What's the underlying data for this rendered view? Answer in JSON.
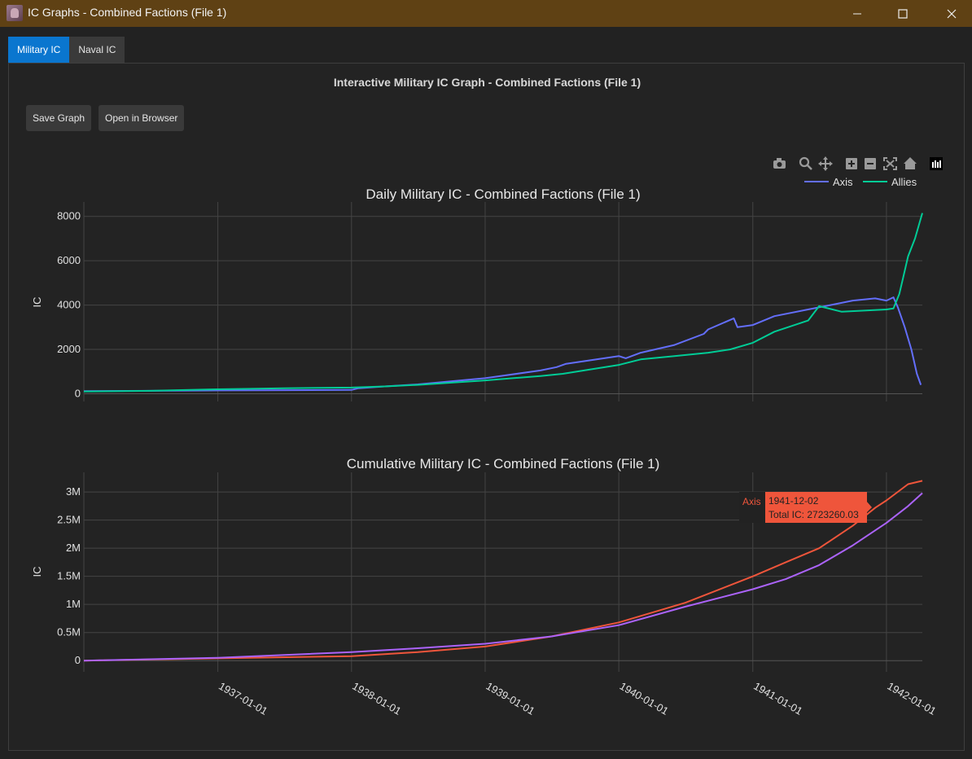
{
  "window": {
    "title": "IC Graphs - Combined Factions (File 1)",
    "controls": [
      "minimize-icon",
      "maximize-icon",
      "close-icon"
    ]
  },
  "tabs": [
    {
      "label": "Military IC",
      "active": true
    },
    {
      "label": "Naval IC",
      "active": false
    }
  ],
  "panel": {
    "title": "Interactive Military IC Graph - Combined Factions (File 1)",
    "save_label": "Save Graph",
    "open_label": "Open in Browser"
  },
  "modebar": [
    "camera-icon",
    "zoom-icon",
    "pan-icon",
    "zoom-in-icon",
    "zoom-out-icon",
    "autoscale-icon",
    "home-icon",
    "plotly-logo-icon"
  ],
  "colors": {
    "axis": "#636efa",
    "allies": "#00cc96",
    "cum_axis": "#ef553b",
    "cum_allies": "#ab63fa"
  },
  "legend": {
    "axis": "Axis",
    "allies": "Allies"
  },
  "tooltip": {
    "name": "Axis",
    "date": "1941-12-02",
    "text": "Total IC: 2723260.03"
  },
  "chart_data": [
    {
      "type": "line",
      "title": "Daily Military IC - Combined Factions (File 1)",
      "ylabel": "IC",
      "ylim": [
        -350,
        8650
      ],
      "yticks": [
        0,
        2000,
        4000,
        6000,
        8000
      ],
      "ytick_labels": [
        "0",
        "2000",
        "4000",
        "6000",
        "8000"
      ],
      "xlim": [
        "1936-01-01",
        "1942-04-09"
      ],
      "grid": true,
      "legend_position": "top-right",
      "series": [
        {
          "name": "Axis",
          "x": [
            "1936-01-01",
            "1936-07-01",
            "1937-01-01",
            "1937-07-01",
            "1938-01-01",
            "1938-01-20",
            "1938-04-01",
            "1938-07-01",
            "1939-01-01",
            "1939-06-01",
            "1939-07-15",
            "1939-08-10",
            "1940-01-01",
            "1940-01-20",
            "1940-03-01",
            "1940-06-01",
            "1940-08-20",
            "1940-09-01",
            "1940-11-10",
            "1940-11-20",
            "1941-01-01",
            "1941-03-01",
            "1941-06-01",
            "1941-08-01",
            "1941-10-01",
            "1941-12-01",
            "1942-01-01",
            "1942-01-20",
            "1942-02-01",
            "1942-02-20",
            "1942-03-10",
            "1942-03-25",
            "1942-04-05"
          ],
          "y": [
            120,
            130,
            150,
            160,
            170,
            250,
            330,
            420,
            700,
            1050,
            1200,
            1350,
            1700,
            1600,
            1850,
            2200,
            2700,
            2900,
            3400,
            3000,
            3100,
            3500,
            3800,
            4000,
            4200,
            4300,
            4200,
            4350,
            3900,
            3000,
            2000,
            900,
            400
          ]
        },
        {
          "name": "Allies",
          "x": [
            "1936-01-01",
            "1936-07-01",
            "1937-01-01",
            "1937-07-01",
            "1938-01-01",
            "1938-04-01",
            "1938-07-01",
            "1939-01-01",
            "1939-06-01",
            "1939-08-01",
            "1940-01-01",
            "1940-03-01",
            "1940-06-01",
            "1940-09-01",
            "1940-11-01",
            "1941-01-01",
            "1941-03-01",
            "1941-06-01",
            "1941-07-01",
            "1941-09-01",
            "1942-01-01",
            "1942-01-20",
            "1942-02-05",
            "1942-02-15",
            "1942-03-01",
            "1942-03-20",
            "1942-04-09"
          ],
          "y": [
            100,
            130,
            200,
            250,
            280,
            330,
            400,
            600,
            800,
            900,
            1300,
            1550,
            1700,
            1850,
            2000,
            2300,
            2800,
            3300,
            3950,
            3700,
            3800,
            3850,
            4500,
            5200,
            6200,
            7000,
            8150
          ]
        }
      ]
    },
    {
      "type": "line",
      "title": "Cumulative Military IC - Combined Factions (File 1)",
      "ylabel": "IC",
      "ylim": [
        -200000,
        3350000
      ],
      "yticks": [
        0,
        500000,
        1000000,
        1500000,
        2000000,
        2500000,
        3000000
      ],
      "ytick_labels": [
        "0",
        "0.5M",
        "1M",
        "1.5M",
        "2M",
        "2.5M",
        "3M"
      ],
      "xlim": [
        "1936-01-01",
        "1942-04-09"
      ],
      "xticks": [
        "1937-01-01",
        "1938-01-01",
        "1939-01-01",
        "1940-01-01",
        "1941-01-01",
        "1942-01-01"
      ],
      "grid": true,
      "series": [
        {
          "name": "Axis",
          "x": [
            "1936-01-01",
            "1937-01-01",
            "1938-01-01",
            "1938-07-01",
            "1939-01-01",
            "1939-07-01",
            "1940-01-01",
            "1940-07-01",
            "1941-01-01",
            "1941-04-01",
            "1941-07-01",
            "1941-10-01",
            "1941-12-02",
            "1942-01-01",
            "1942-03-01",
            "1942-04-09"
          ],
          "y": [
            0,
            40000,
            80000,
            150000,
            250000,
            430000,
            680000,
            1030000,
            1500000,
            1750000,
            2000000,
            2400000,
            2723260,
            2850000,
            3140000,
            3200000
          ]
        },
        {
          "name": "Allies",
          "x": [
            "1936-01-01",
            "1937-01-01",
            "1938-01-01",
            "1938-07-01",
            "1939-01-01",
            "1939-07-01",
            "1940-01-01",
            "1940-07-01",
            "1941-01-01",
            "1941-04-01",
            "1941-07-01",
            "1941-10-01",
            "1942-01-01",
            "1942-03-01",
            "1942-04-09"
          ],
          "y": [
            0,
            50000,
            150000,
            220000,
            300000,
            430000,
            630000,
            960000,
            1270000,
            1450000,
            1700000,
            2050000,
            2450000,
            2750000,
            2980000
          ]
        }
      ]
    }
  ]
}
